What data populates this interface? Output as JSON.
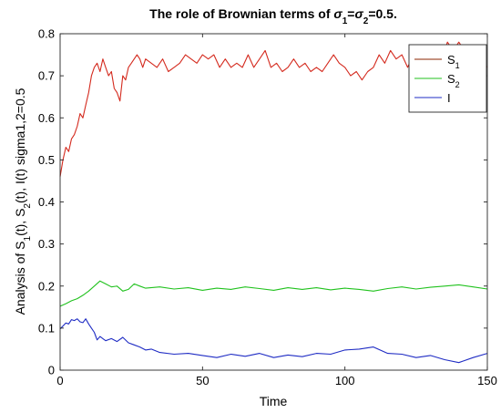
{
  "chart_data": {
    "type": "line",
    "title": {
      "prefix": "The role of Brownian terms of ",
      "sigma": "σ",
      "sub1": "1",
      "eq": "=",
      "sub2": "2",
      "suffix": "=0.5."
    },
    "xlabel": "Time",
    "ylabel": {
      "p1": "Analysis of S",
      "s1": "1",
      "p2": "(t), S",
      "s2": "2",
      "p3": "(t), I(t) sigma1,2=0.5"
    },
    "xlim": [
      0,
      150
    ],
    "ylim": [
      0,
      0.8
    ],
    "xticks": [
      0,
      50,
      100,
      150
    ],
    "xtick_labels": [
      "0",
      "50",
      "100",
      "150"
    ],
    "yticks": [
      0,
      0.1,
      0.2,
      0.3,
      0.4,
      0.5,
      0.6,
      0.7,
      0.8
    ],
    "ytick_labels": [
      "0",
      "0.1",
      "0.2",
      "0.3",
      "0.4",
      "0.5",
      "0.6",
      "0.7",
      "0.8"
    ],
    "grid": false,
    "legend_position": "top-right",
    "series": [
      {
        "key": "S1",
        "name": "S",
        "name_sub": "1",
        "legend_color": "#8b2500",
        "color": "#d42a1e",
        "x": [
          0,
          1,
          2,
          3,
          4,
          5,
          6,
          7,
          8,
          9,
          10,
          11,
          12,
          13,
          14,
          15,
          16,
          17,
          18,
          19,
          20,
          21,
          22,
          23,
          24,
          25,
          26,
          27,
          28,
          29,
          30,
          32,
          34,
          36,
          38,
          40,
          42,
          44,
          46,
          48,
          50,
          52,
          54,
          56,
          58,
          60,
          62,
          64,
          66,
          68,
          70,
          72,
          74,
          76,
          78,
          80,
          82,
          84,
          86,
          88,
          90,
          92,
          94,
          96,
          98,
          100,
          102,
          104,
          106,
          108,
          110,
          112,
          114,
          116,
          118,
          120,
          122,
          124,
          126,
          128,
          130,
          132,
          134,
          136,
          138,
          140,
          142,
          144,
          146,
          148,
          150
        ],
        "y": [
          0.46,
          0.5,
          0.53,
          0.52,
          0.55,
          0.56,
          0.58,
          0.61,
          0.6,
          0.63,
          0.66,
          0.7,
          0.72,
          0.73,
          0.71,
          0.74,
          0.72,
          0.7,
          0.71,
          0.67,
          0.66,
          0.64,
          0.7,
          0.69,
          0.72,
          0.73,
          0.74,
          0.75,
          0.74,
          0.72,
          0.74,
          0.73,
          0.72,
          0.74,
          0.71,
          0.72,
          0.73,
          0.75,
          0.74,
          0.73,
          0.75,
          0.74,
          0.75,
          0.72,
          0.74,
          0.72,
          0.73,
          0.72,
          0.75,
          0.72,
          0.74,
          0.76,
          0.72,
          0.73,
          0.71,
          0.72,
          0.74,
          0.72,
          0.73,
          0.71,
          0.72,
          0.71,
          0.73,
          0.75,
          0.73,
          0.72,
          0.7,
          0.71,
          0.69,
          0.71,
          0.72,
          0.75,
          0.73,
          0.76,
          0.74,
          0.75,
          0.72,
          0.75,
          0.76,
          0.74,
          0.77,
          0.75,
          0.74,
          0.78,
          0.76,
          0.78,
          0.76,
          0.75,
          0.73,
          0.74,
          0.72
        ]
      },
      {
        "key": "S2",
        "name": "S",
        "name_sub": "2",
        "legend_color": "#21c21e",
        "color": "#21c21e",
        "x": [
          0,
          2,
          4,
          6,
          8,
          10,
          12,
          14,
          16,
          18,
          20,
          22,
          24,
          26,
          28,
          30,
          35,
          40,
          45,
          50,
          55,
          60,
          65,
          70,
          75,
          80,
          85,
          90,
          95,
          100,
          105,
          110,
          115,
          120,
          125,
          130,
          135,
          140,
          145,
          150
        ],
        "y": [
          0.152,
          0.158,
          0.165,
          0.17,
          0.178,
          0.188,
          0.2,
          0.212,
          0.205,
          0.198,
          0.2,
          0.188,
          0.192,
          0.205,
          0.2,
          0.195,
          0.198,
          0.193,
          0.196,
          0.19,
          0.195,
          0.192,
          0.198,
          0.194,
          0.19,
          0.196,
          0.192,
          0.196,
          0.191,
          0.195,
          0.192,
          0.188,
          0.194,
          0.198,
          0.193,
          0.197,
          0.2,
          0.203,
          0.198,
          0.193
        ]
      },
      {
        "key": "I",
        "name": "I",
        "name_sub": "",
        "legend_color": "#1f2cc4",
        "color": "#1f2cc4",
        "x": [
          0,
          1,
          2,
          3,
          4,
          5,
          6,
          7,
          8,
          9,
          10,
          11,
          12,
          13,
          14,
          15,
          16,
          18,
          20,
          22,
          24,
          26,
          28,
          30,
          32,
          35,
          40,
          45,
          50,
          55,
          60,
          65,
          70,
          75,
          80,
          85,
          90,
          95,
          100,
          105,
          110,
          115,
          120,
          125,
          130,
          135,
          140,
          145,
          150
        ],
        "y": [
          0.098,
          0.105,
          0.112,
          0.11,
          0.12,
          0.118,
          0.122,
          0.115,
          0.113,
          0.122,
          0.11,
          0.1,
          0.09,
          0.072,
          0.08,
          0.075,
          0.07,
          0.075,
          0.068,
          0.078,
          0.065,
          0.06,
          0.055,
          0.048,
          0.05,
          0.042,
          0.038,
          0.04,
          0.035,
          0.03,
          0.038,
          0.033,
          0.04,
          0.03,
          0.036,
          0.032,
          0.04,
          0.038,
          0.048,
          0.05,
          0.055,
          0.04,
          0.038,
          0.03,
          0.035,
          0.025,
          0.018,
          0.03,
          0.04
        ]
      }
    ]
  }
}
